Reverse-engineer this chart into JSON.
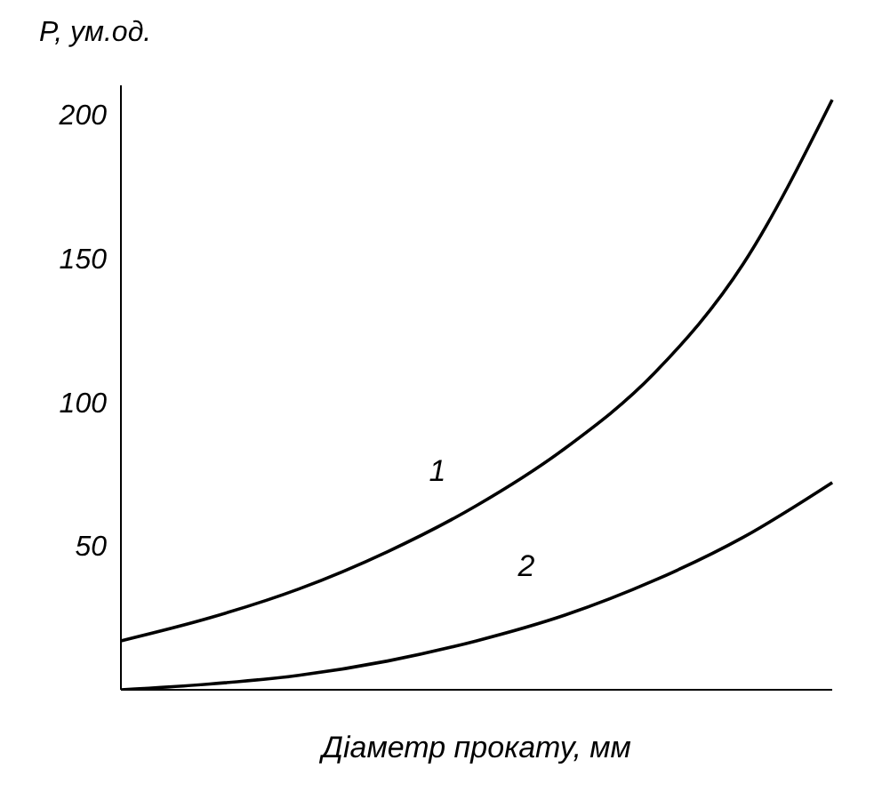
{
  "chart_data": {
    "type": "line",
    "xlabel": "Діаметр прокату, мм",
    "ylabel": "P, ум.од.",
    "categories": [
      null,
      null,
      null,
      null,
      null,
      null,
      null,
      null,
      null
    ],
    "series": [
      {
        "name": "1",
        "color": "#000000",
        "values": [
          17,
          25,
          35,
          48,
          64,
          84,
          110,
          148,
          205
        ]
      },
      {
        "name": "2",
        "color": "#000000",
        "values": [
          0,
          2,
          5,
          10,
          17,
          26,
          38,
          53,
          72
        ]
      }
    ],
    "ylim": [
      0,
      210
    ],
    "yticks": [
      50,
      100,
      150,
      200
    ],
    "tick_labels": "y",
    "grid": false,
    "legend": false,
    "marker": "none",
    "line_style": "solid"
  }
}
